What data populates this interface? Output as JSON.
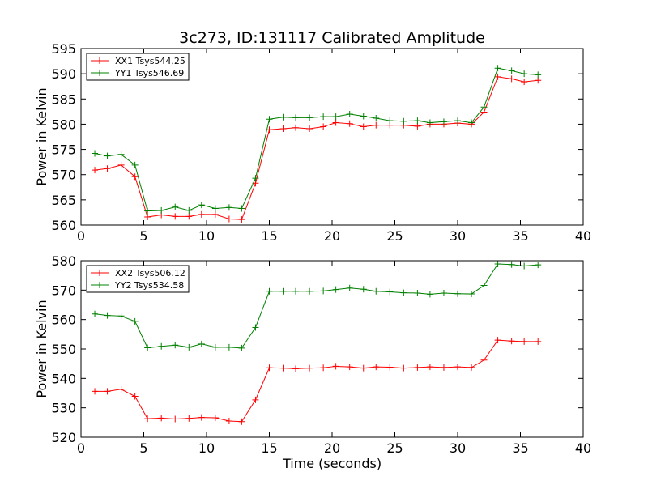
{
  "figure": {
    "title": "3c273, ID:131117 Calibrated Amplitude"
  },
  "colors": {
    "red": "#ff0000",
    "green": "#008000",
    "frame": "#000000",
    "background": "#ffffff"
  },
  "chart_data": [
    {
      "type": "line",
      "title": "3c273, ID:131117 Calibrated Amplitude",
      "xlabel": "",
      "ylabel": "Power in Kelvin",
      "xlim": [
        0,
        40
      ],
      "ylim": [
        560,
        595
      ],
      "xticks": [
        0,
        5,
        10,
        15,
        20,
        25,
        30,
        35,
        40
      ],
      "yticks": [
        560,
        565,
        570,
        575,
        580,
        585,
        590,
        595
      ],
      "grid": false,
      "legend_position": "top-left",
      "x": [
        1.1,
        2.1,
        3.2,
        4.3,
        5.3,
        6.4,
        7.5,
        8.6,
        9.6,
        10.7,
        11.8,
        12.8,
        13.9,
        15.0,
        16.1,
        17.1,
        18.2,
        19.3,
        20.3,
        21.4,
        22.5,
        23.5,
        24.6,
        25.7,
        26.8,
        27.8,
        28.9,
        30.0,
        31.1,
        32.1,
        33.2,
        34.3,
        35.3,
        36.4
      ],
      "series": [
        {
          "name": "XX1 Tsys544.25",
          "color": "#ff0000",
          "values": [
            570.9,
            571.2,
            571.9,
            569.6,
            561.6,
            562.0,
            561.7,
            561.7,
            562.1,
            562.1,
            561.2,
            561.1,
            568.3,
            578.9,
            579.1,
            579.3,
            579.1,
            579.5,
            580.3,
            580.1,
            579.5,
            579.8,
            579.8,
            579.8,
            579.6,
            580.0,
            580.0,
            580.2,
            580.0,
            582.4,
            589.4,
            589.0,
            588.4,
            588.7
          ]
        },
        {
          "name": "YY1 Tsys546.69",
          "color": "#008000",
          "values": [
            574.2,
            573.7,
            574.0,
            571.9,
            562.8,
            562.9,
            563.6,
            562.9,
            564.0,
            563.3,
            563.5,
            563.3,
            569.3,
            581.0,
            581.4,
            581.3,
            581.3,
            581.5,
            581.5,
            582.0,
            581.6,
            581.2,
            580.7,
            580.6,
            580.7,
            580.3,
            580.5,
            580.7,
            580.3,
            583.4,
            591.1,
            590.6,
            590.0,
            589.8
          ]
        }
      ]
    },
    {
      "type": "line",
      "title": "",
      "xlabel": "Time (seconds)",
      "ylabel": "Power in Kelvin",
      "xlim": [
        0,
        40
      ],
      "ylim": [
        520,
        580
      ],
      "xticks": [
        0,
        5,
        10,
        15,
        20,
        25,
        30,
        35,
        40
      ],
      "yticks": [
        520,
        530,
        540,
        550,
        560,
        570,
        580
      ],
      "grid": false,
      "legend_position": "top-left",
      "x": [
        1.1,
        2.1,
        3.2,
        4.3,
        5.3,
        6.4,
        7.5,
        8.6,
        9.6,
        10.7,
        11.8,
        12.8,
        13.9,
        15.0,
        16.1,
        17.1,
        18.2,
        19.3,
        20.3,
        21.4,
        22.5,
        23.5,
        24.6,
        25.7,
        26.8,
        27.8,
        28.9,
        30.0,
        31.1,
        32.1,
        33.2,
        34.3,
        35.3,
        36.4
      ],
      "series": [
        {
          "name": "XX2 Tsys506.12",
          "color": "#ff0000",
          "values": [
            535.6,
            535.6,
            536.3,
            533.9,
            526.3,
            526.5,
            526.2,
            526.4,
            526.7,
            526.6,
            525.5,
            525.3,
            532.7,
            543.6,
            543.5,
            543.3,
            543.5,
            543.6,
            544.1,
            543.9,
            543.5,
            543.9,
            543.8,
            543.5,
            543.7,
            543.9,
            543.7,
            543.9,
            543.7,
            546.2,
            553.0,
            552.7,
            552.5,
            552.5
          ]
        },
        {
          "name": "YY2 Tsys534.58",
          "color": "#008000",
          "values": [
            561.9,
            561.4,
            561.2,
            559.4,
            550.4,
            550.9,
            551.3,
            550.6,
            551.7,
            550.6,
            550.6,
            550.3,
            557.3,
            569.6,
            569.6,
            569.6,
            569.6,
            569.7,
            570.2,
            570.7,
            570.3,
            569.6,
            569.4,
            569.1,
            569.0,
            568.6,
            569.0,
            568.8,
            568.7,
            571.6,
            578.9,
            578.7,
            578.2,
            578.6
          ]
        }
      ]
    }
  ]
}
